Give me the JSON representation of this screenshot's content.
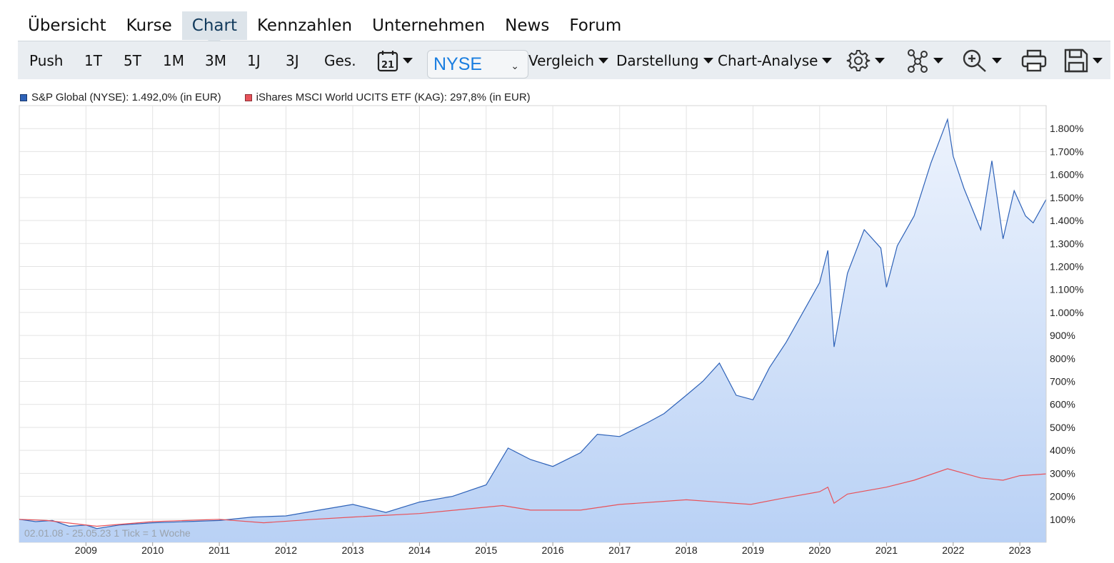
{
  "nav": {
    "tabs": [
      {
        "label": "Übersicht"
      },
      {
        "label": "Kurse"
      },
      {
        "label": "Chart",
        "active": true
      },
      {
        "label": "Kennzahlen"
      },
      {
        "label": "Unternehmen"
      },
      {
        "label": "News"
      },
      {
        "label": "Forum"
      }
    ]
  },
  "toolbar": {
    "ranges": [
      "Push",
      "1T",
      "5T",
      "1M",
      "3M",
      "1J",
      "3J",
      "Ges."
    ],
    "calendar_day": "21",
    "exchange": "NYSE",
    "vergleich": "Vergleich",
    "darstellung": "Darstellung",
    "analyse": "Chart-Analyse",
    "icons": [
      "settings-icon",
      "network-icon",
      "zoom-in-icon",
      "print-icon",
      "save-icon"
    ]
  },
  "legend": {
    "series1": "S&P Global (NYSE): 1.492,0% (in EUR)",
    "series2": "iShares MSCI World UCITS ETF (KAG): 297,8% (in EUR)"
  },
  "range_label": "02.01.08 - 25.05.23   1 Tick = 1 Woche",
  "colors": {
    "series1": "#2e62b8",
    "series2": "#e8525a",
    "area_top": "#edf3fd",
    "area_bottom": "#b9d1f5",
    "grid": "#e3e3e3"
  },
  "chart_data": {
    "type": "area",
    "x_tick_labels": [
      "2009",
      "2010",
      "2011",
      "2012",
      "2013",
      "2014",
      "2015",
      "2016",
      "2017",
      "2018",
      "2019",
      "2020",
      "2021",
      "2022",
      "2023"
    ],
    "y_tick_labels": [
      "100%",
      "200%",
      "300%",
      "400%",
      "500%",
      "600%",
      "700%",
      "800%",
      "900%",
      "1.000%",
      "1.100%",
      "1.200%",
      "1.300%",
      "1.400%",
      "1.500%",
      "1.600%",
      "1.700%",
      "1.800%"
    ],
    "ylim": [
      0,
      1900
    ],
    "xlim": [
      "2008-01-02",
      "2023-05-25"
    ],
    "grid": true,
    "legend_position": "top-left",
    "series": [
      {
        "name": "S&P Global (NYSE)",
        "x": [
          "2008-01-02",
          "2008-04-01",
          "2008-07-01",
          "2008-10-01",
          "2009-01-01",
          "2009-03-01",
          "2009-07-01",
          "2010-01-01",
          "2010-07-01",
          "2011-01-01",
          "2011-07-01",
          "2012-01-01",
          "2012-07-01",
          "2013-01-01",
          "2013-07-01",
          "2014-01-01",
          "2014-07-01",
          "2015-01-01",
          "2015-05-01",
          "2015-09-01",
          "2016-01-01",
          "2016-06-01",
          "2016-09-01",
          "2017-01-01",
          "2017-06-01",
          "2017-09-01",
          "2018-01-01",
          "2018-04-01",
          "2018-07-01",
          "2018-10-01",
          "2019-01-01",
          "2019-04-01",
          "2019-07-01",
          "2019-10-01",
          "2020-01-01",
          "2020-02-15",
          "2020-03-20",
          "2020-06-01",
          "2020-09-01",
          "2020-12-01",
          "2021-01-01",
          "2021-03-01",
          "2021-06-01",
          "2021-09-01",
          "2021-12-01",
          "2022-01-01",
          "2022-03-01",
          "2022-06-01",
          "2022-08-01",
          "2022-10-01",
          "2022-12-01",
          "2023-02-01",
          "2023-03-15",
          "2023-05-25"
        ],
        "y": [
          100,
          90,
          95,
          70,
          75,
          60,
          75,
          85,
          90,
          95,
          110,
          115,
          140,
          165,
          130,
          175,
          200,
          250,
          410,
          360,
          330,
          390,
          470,
          460,
          520,
          560,
          640,
          700,
          780,
          640,
          620,
          760,
          870,
          1000,
          1130,
          1270,
          850,
          1170,
          1360,
          1280,
          1110,
          1290,
          1420,
          1650,
          1840,
          1680,
          1540,
          1360,
          1660,
          1320,
          1530,
          1420,
          1390,
          1492
        ]
      },
      {
        "name": "iShares MSCI World UCITS ETF (KAG)",
        "x": [
          "2008-01-02",
          "2008-06-01",
          "2009-03-01",
          "2010-01-01",
          "2011-01-01",
          "2011-09-01",
          "2012-06-01",
          "2013-01-01",
          "2014-01-01",
          "2015-04-01",
          "2015-09-01",
          "2016-06-01",
          "2017-01-01",
          "2018-01-01",
          "2018-12-20",
          "2019-06-01",
          "2020-01-01",
          "2020-02-15",
          "2020-03-20",
          "2020-06-01",
          "2021-01-01",
          "2021-06-01",
          "2021-12-01",
          "2022-06-01",
          "2022-10-01",
          "2023-01-01",
          "2023-05-25"
        ],
        "y": [
          100,
          95,
          70,
          90,
          100,
          85,
          100,
          110,
          125,
          160,
          140,
          140,
          165,
          185,
          165,
          190,
          220,
          240,
          170,
          210,
          240,
          270,
          320,
          280,
          270,
          290,
          297.8
        ]
      }
    ]
  }
}
